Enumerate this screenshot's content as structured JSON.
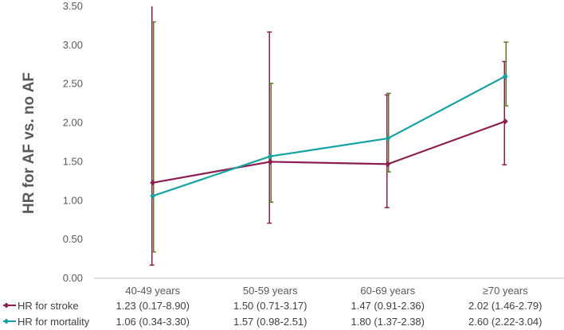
{
  "chart_data": {
    "type": "line",
    "ylabel": "HR for AF vs. no AF",
    "ylim": [
      0,
      3.5
    ],
    "ytick_labels": [
      "0.00",
      "0.50",
      "1.00",
      "1.50",
      "2.00",
      "2.50",
      "3.00",
      "3.50"
    ],
    "yticks": [
      0,
      0.5,
      1.0,
      1.5,
      2.0,
      2.5,
      3.0,
      3.5
    ],
    "categories": [
      "40-49 years",
      "50-59 years",
      "60-69 years",
      "≥70 years"
    ],
    "series": [
      {
        "name": "HR for stroke",
        "color": "#8B1E4E",
        "values": [
          1.23,
          1.5,
          1.47,
          2.02
        ],
        "ci_low": [
          0.17,
          0.71,
          0.91,
          1.46
        ],
        "ci_high": [
          8.9,
          3.17,
          2.36,
          2.79
        ],
        "table": [
          "1.23 (0.17-8.90)",
          "1.50 (0.71-3.17)",
          "1.47 (0.91-2.36)",
          "2.02 (1.46-2.79)"
        ]
      },
      {
        "name": "HR for mortality",
        "color": "#17A2A2",
        "values": [
          1.06,
          1.57,
          1.8,
          2.6
        ],
        "ci_low": [
          0.34,
          0.98,
          1.37,
          2.22
        ],
        "ci_high": [
          3.3,
          2.51,
          2.38,
          3.04
        ],
        "table": [
          "1.06 (0.34-3.30)",
          "1.57 (0.98-2.51)",
          "1.80 (1.37-2.38)",
          "2.60 (2.22-3.04)"
        ]
      }
    ],
    "errorbar_colors": [
      "#8B1E4E",
      "#5A7A2A"
    ],
    "grid": false,
    "legend": "data-table-left"
  }
}
